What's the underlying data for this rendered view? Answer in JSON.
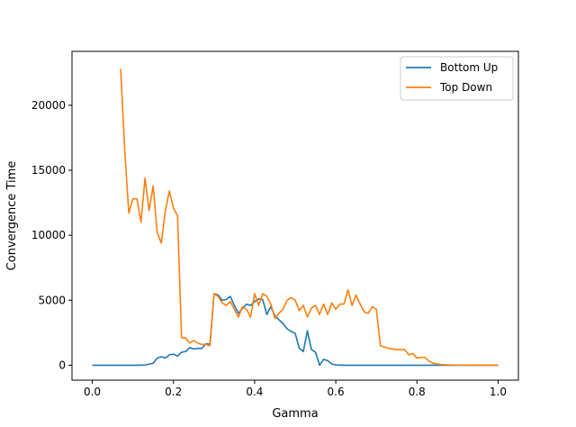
{
  "chart_data": {
    "type": "line",
    "title": "",
    "xlabel": "Gamma",
    "ylabel": "Convergence Time",
    "xlim": [
      -0.05,
      1.05
    ],
    "ylim": [
      -1150,
      24150
    ],
    "xticks": [
      0.0,
      0.2,
      0.4,
      0.6,
      0.8,
      1.0
    ],
    "xtick_labels": [
      "0.0",
      "0.2",
      "0.4",
      "0.6",
      "0.8",
      "1.0"
    ],
    "yticks": [
      0,
      5000,
      10000,
      15000,
      20000
    ],
    "ytick_labels": [
      "0",
      "5000",
      "10000",
      "15000",
      "20000"
    ],
    "grid": false,
    "legend_position": "top-right",
    "series": [
      {
        "name": "Bottom Up",
        "color": "#1f77b4",
        "x": [
          0.0,
          0.01,
          0.02,
          0.03,
          0.04,
          0.05,
          0.06,
          0.07,
          0.08,
          0.09,
          0.1,
          0.11,
          0.12,
          0.13,
          0.14,
          0.15,
          0.16,
          0.17,
          0.18,
          0.19,
          0.2,
          0.21,
          0.22,
          0.23,
          0.24,
          0.25,
          0.26,
          0.27,
          0.28,
          0.29,
          0.3,
          0.31,
          0.32,
          0.33,
          0.34,
          0.35,
          0.36,
          0.37,
          0.38,
          0.39,
          0.4,
          0.41,
          0.42,
          0.43,
          0.44,
          0.45,
          0.46,
          0.47,
          0.48,
          0.49,
          0.5,
          0.51,
          0.52,
          0.53,
          0.54,
          0.55,
          0.56,
          0.57,
          0.58,
          0.59,
          0.6,
          0.62,
          0.65,
          0.7,
          0.75,
          0.8,
          0.84,
          0.85,
          0.86,
          0.9,
          0.95,
          1.0
        ],
        "values": [
          0,
          0,
          0,
          0,
          0,
          0,
          0,
          0,
          0,
          0,
          0,
          0,
          10,
          20,
          80,
          150,
          550,
          650,
          550,
          800,
          850,
          700,
          1000,
          1050,
          1350,
          1250,
          1300,
          1300,
          1650,
          1600,
          5500,
          5400,
          5000,
          5050,
          5300,
          4600,
          4000,
          4350,
          4700,
          4600,
          4900,
          5100,
          5050,
          3900,
          4500,
          3800,
          3500,
          3200,
          2800,
          2600,
          2450,
          1300,
          1050,
          2650,
          1200,
          1000,
          0,
          450,
          350,
          100,
          20,
          0,
          0,
          0,
          0,
          0,
          0,
          0,
          0,
          0,
          0,
          0
        ]
      },
      {
        "name": "Top Down",
        "color": "#ff7f0e",
        "x": [
          0.07,
          0.08,
          0.09,
          0.1,
          0.11,
          0.12,
          0.13,
          0.14,
          0.15,
          0.16,
          0.17,
          0.18,
          0.19,
          0.2,
          0.21,
          0.22,
          0.23,
          0.24,
          0.25,
          0.26,
          0.27,
          0.28,
          0.29,
          0.3,
          0.31,
          0.32,
          0.33,
          0.34,
          0.35,
          0.36,
          0.37,
          0.38,
          0.39,
          0.4,
          0.41,
          0.42,
          0.43,
          0.44,
          0.45,
          0.46,
          0.47,
          0.48,
          0.49,
          0.5,
          0.51,
          0.52,
          0.53,
          0.54,
          0.55,
          0.56,
          0.57,
          0.58,
          0.59,
          0.6,
          0.61,
          0.62,
          0.63,
          0.64,
          0.65,
          0.66,
          0.67,
          0.68,
          0.69,
          0.7,
          0.71,
          0.72,
          0.73,
          0.74,
          0.75,
          0.76,
          0.77,
          0.78,
          0.79,
          0.8,
          0.81,
          0.82,
          0.83,
          0.84,
          0.85,
          0.86,
          0.87,
          0.88,
          0.9,
          0.92,
          0.95,
          1.0
        ],
        "values": [
          22800,
          16500,
          11700,
          12800,
          12800,
          11000,
          14400,
          11900,
          13800,
          10200,
          9400,
          11900,
          13400,
          12100,
          11500,
          2100,
          2100,
          1700,
          1900,
          1700,
          1600,
          1600,
          1500,
          5500,
          5300,
          4800,
          4600,
          4900,
          4300,
          3700,
          4500,
          4300,
          3700,
          5500,
          4600,
          5500,
          5300,
          4700,
          3600,
          4000,
          4300,
          5000,
          5200,
          5000,
          4200,
          4600,
          3700,
          4400,
          4600,
          3900,
          4700,
          3900,
          4800,
          4300,
          4700,
          4700,
          5800,
          4600,
          5400,
          4700,
          4100,
          4000,
          4500,
          4300,
          1500,
          1400,
          1300,
          1250,
          1200,
          1200,
          1200,
          800,
          900,
          550,
          600,
          600,
          300,
          150,
          100,
          50,
          30,
          20,
          10,
          5,
          0,
          0
        ]
      }
    ]
  }
}
